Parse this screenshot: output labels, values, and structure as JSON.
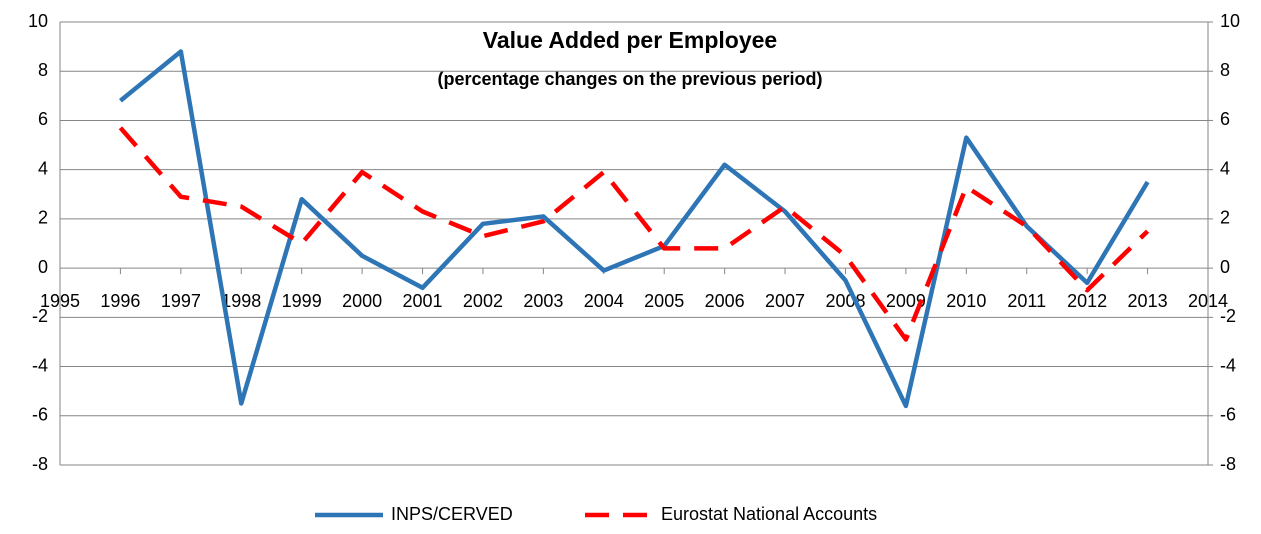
{
  "chart_data": {
    "type": "line",
    "title": "Value Added per Employee",
    "subtitle": "(percentage changes on the previous period)",
    "x": [
      1996,
      1997,
      1998,
      1999,
      2000,
      2001,
      2002,
      2003,
      2004,
      2005,
      2006,
      2007,
      2008,
      2009,
      2010,
      2011,
      2012,
      2013
    ],
    "series": [
      {
        "name": "INPS/CERVED",
        "color": "#2e75b6",
        "dash": "solid",
        "values": [
          6.8,
          8.8,
          -5.5,
          2.8,
          0.5,
          -0.8,
          1.8,
          2.1,
          -0.1,
          0.9,
          4.2,
          2.3,
          -0.5,
          -5.6,
          5.3,
          1.7,
          -0.6,
          3.5
        ]
      },
      {
        "name": "Eurostat National Accounts",
        "color": "#ff0000",
        "dash": "dashed",
        "values": [
          5.7,
          2.9,
          2.5,
          1.0,
          3.9,
          2.3,
          1.3,
          1.9,
          3.9,
          0.8,
          0.8,
          2.5,
          0.5,
          -2.9,
          3.3,
          1.7,
          -0.9,
          1.5
        ]
      }
    ],
    "xlim": [
      1995,
      2014
    ],
    "xticks": [
      1995,
      1996,
      1997,
      1998,
      1999,
      2000,
      2001,
      2002,
      2003,
      2004,
      2005,
      2006,
      2007,
      2008,
      2009,
      2010,
      2011,
      2012,
      2013,
      2014
    ],
    "ylim": [
      -8,
      10
    ],
    "yticks": [
      -8,
      -6,
      -4,
      -2,
      0,
      2,
      4,
      6,
      8,
      10
    ],
    "y2lim": [
      -8,
      10
    ],
    "y2ticks": [
      -8,
      -6,
      -4,
      -2,
      0,
      2,
      4,
      6,
      8,
      10
    ],
    "grid": true,
    "legend": "bottom"
  }
}
